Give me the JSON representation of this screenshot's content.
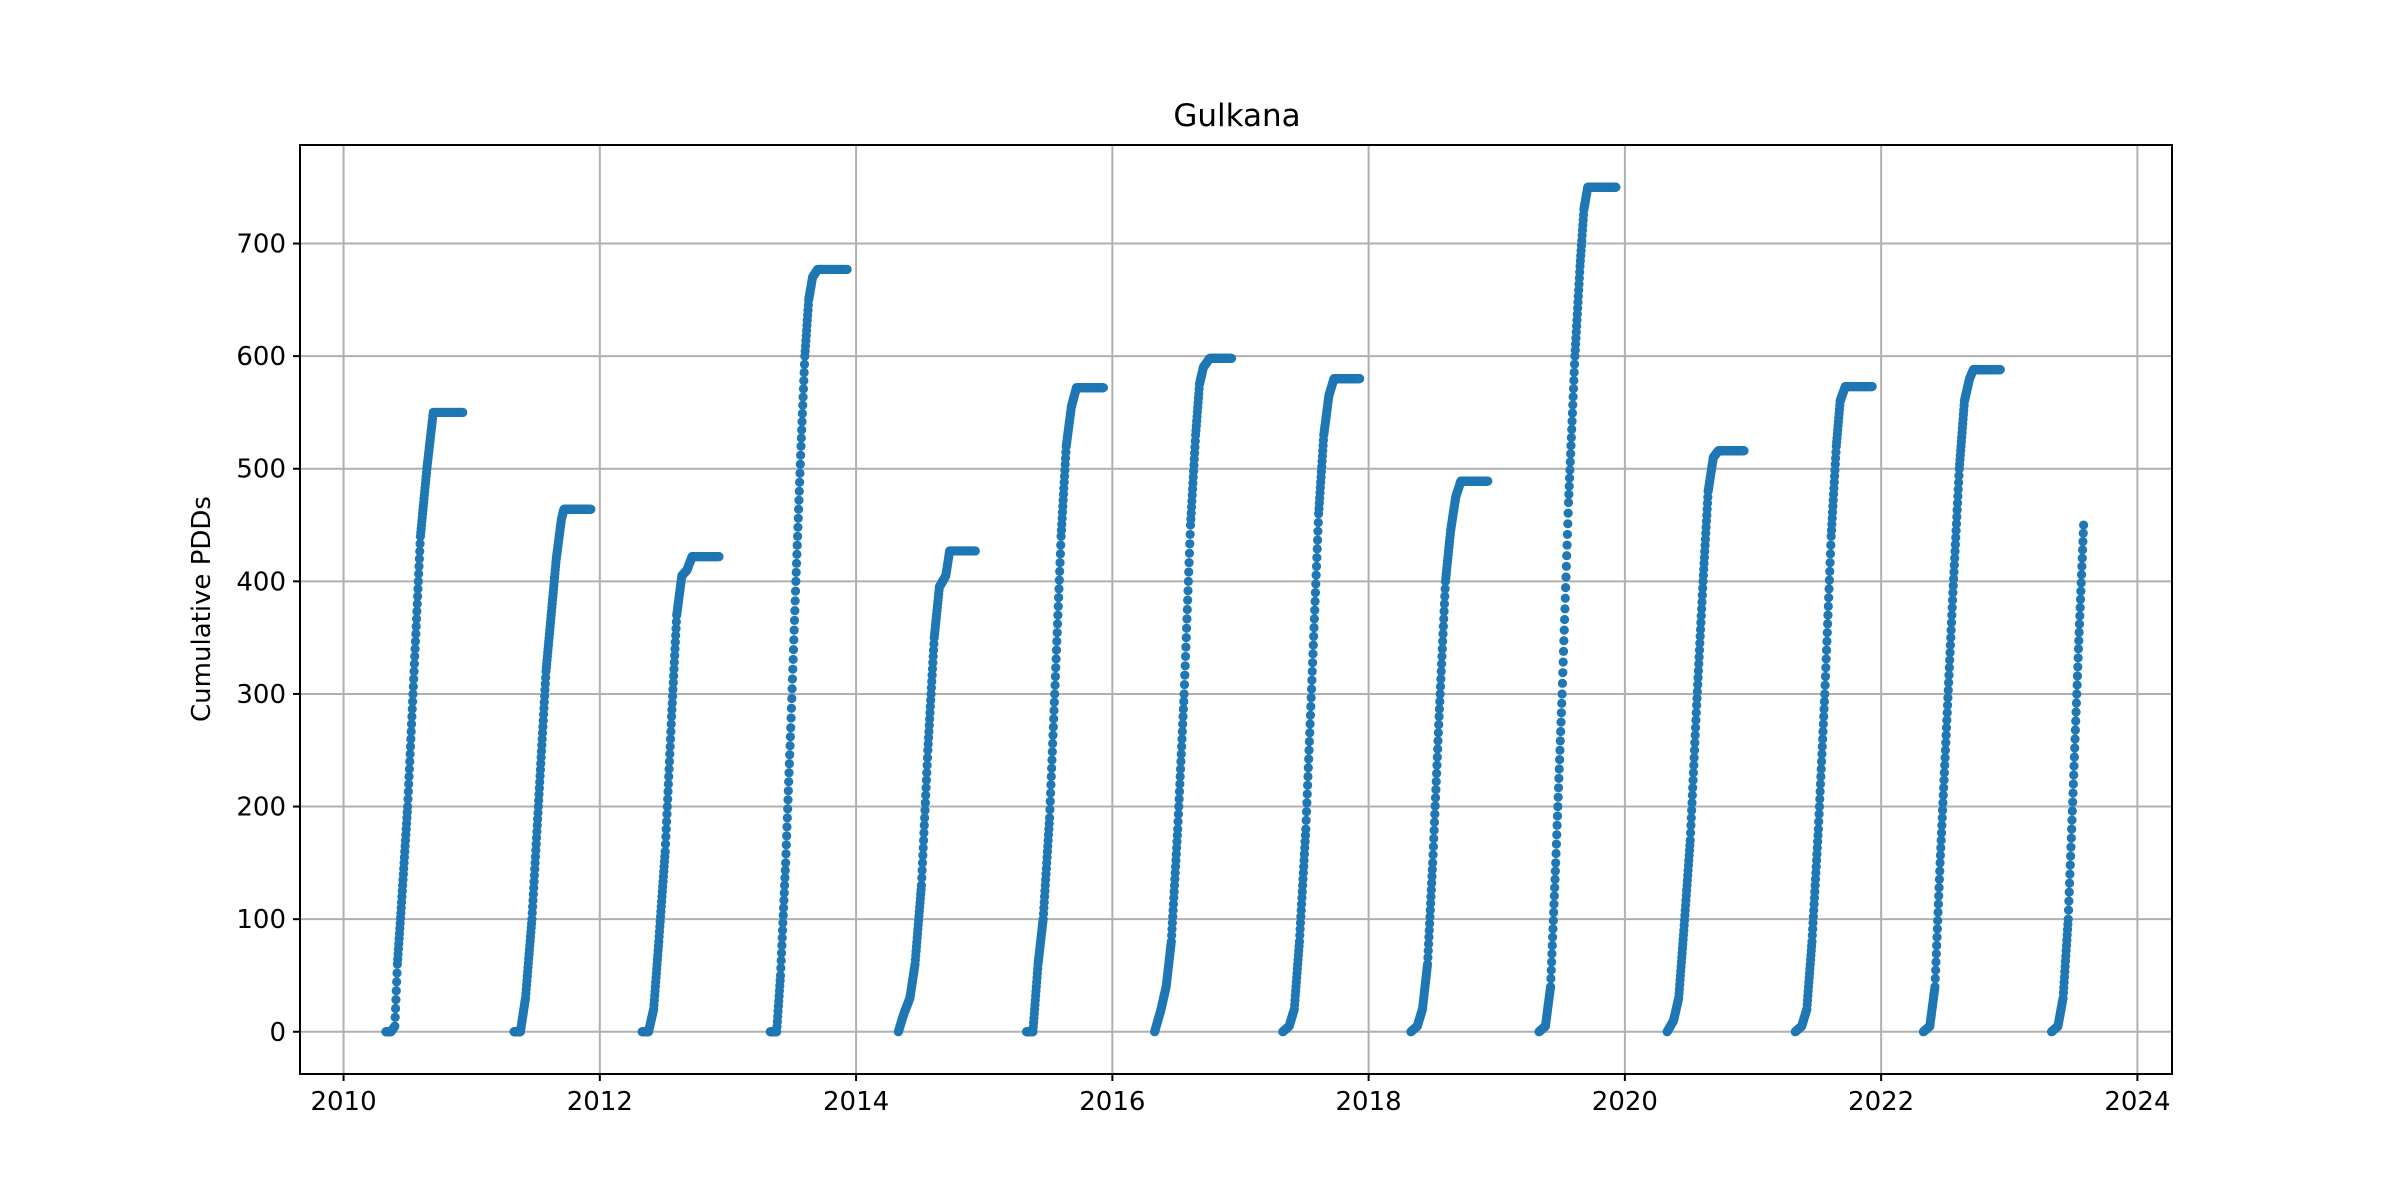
{
  "chart_data": {
    "type": "scatter",
    "title": "Gulkana",
    "xlabel": "",
    "ylabel": "Cumulative PDDs",
    "xlim": [
      2009.66,
      2024.27
    ],
    "ylim": [
      -37.5,
      787.5
    ],
    "xticks": [
      2010,
      2012,
      2014,
      2016,
      2018,
      2020,
      2022,
      2024
    ],
    "xtick_labels": [
      "2010",
      "2012",
      "2014",
      "2016",
      "2018",
      "2020",
      "2022",
      "2024"
    ],
    "yticks": [
      0,
      100,
      200,
      300,
      400,
      500,
      600,
      700
    ],
    "ytick_labels": [
      "0",
      "100",
      "200",
      "300",
      "400",
      "500",
      "600",
      "700"
    ],
    "grid": true,
    "marker_color": "#1f77b4",
    "seasons": [
      {
        "year": 2010,
        "points": [
          [
            2010.33,
            0
          ],
          [
            2010.37,
            0
          ],
          [
            2010.4,
            5
          ],
          [
            2010.42,
            60
          ],
          [
            2010.45,
            110
          ],
          [
            2010.5,
            200
          ],
          [
            2010.55,
            320
          ],
          [
            2010.6,
            440
          ],
          [
            2010.65,
            500
          ],
          [
            2010.68,
            530
          ],
          [
            2010.7,
            550
          ],
          [
            2010.75,
            550
          ],
          [
            2010.85,
            550
          ],
          [
            2010.93,
            550
          ]
        ]
      },
      {
        "year": 2011,
        "points": [
          [
            2011.33,
            0
          ],
          [
            2011.38,
            0
          ],
          [
            2011.42,
            30
          ],
          [
            2011.47,
            100
          ],
          [
            2011.52,
            200
          ],
          [
            2011.58,
            320
          ],
          [
            2011.62,
            370
          ],
          [
            2011.66,
            420
          ],
          [
            2011.7,
            455
          ],
          [
            2011.72,
            464
          ],
          [
            2011.8,
            464
          ],
          [
            2011.93,
            464
          ]
        ]
      },
      {
        "year": 2012,
        "points": [
          [
            2012.33,
            0
          ],
          [
            2012.38,
            0
          ],
          [
            2012.42,
            20
          ],
          [
            2012.46,
            80
          ],
          [
            2012.51,
            160
          ],
          [
            2012.56,
            280
          ],
          [
            2012.6,
            370
          ],
          [
            2012.64,
            405
          ],
          [
            2012.68,
            410
          ],
          [
            2012.72,
            422
          ],
          [
            2012.8,
            422
          ],
          [
            2012.93,
            422
          ]
        ]
      },
      {
        "year": 2013,
        "points": [
          [
            2013.33,
            0
          ],
          [
            2013.38,
            0
          ],
          [
            2013.41,
            50
          ],
          [
            2013.45,
            150
          ],
          [
            2013.49,
            270
          ],
          [
            2013.53,
            400
          ],
          [
            2013.57,
            520
          ],
          [
            2013.6,
            600
          ],
          [
            2013.63,
            650
          ],
          [
            2013.66,
            670
          ],
          [
            2013.7,
            677
          ],
          [
            2013.8,
            677
          ],
          [
            2013.93,
            677
          ]
        ]
      },
      {
        "year": 2014,
        "points": [
          [
            2014.33,
            0
          ],
          [
            2014.37,
            15
          ],
          [
            2014.42,
            30
          ],
          [
            2014.46,
            60
          ],
          [
            2014.51,
            130
          ],
          [
            2014.56,
            250
          ],
          [
            2014.61,
            350
          ],
          [
            2014.65,
            395
          ],
          [
            2014.7,
            405
          ],
          [
            2014.73,
            427
          ],
          [
            2014.8,
            427
          ],
          [
            2014.93,
            427
          ]
        ]
      },
      {
        "year": 2015,
        "points": [
          [
            2015.33,
            0
          ],
          [
            2015.38,
            0
          ],
          [
            2015.42,
            60
          ],
          [
            2015.46,
            100
          ],
          [
            2015.51,
            190
          ],
          [
            2015.55,
            300
          ],
          [
            2015.6,
            440
          ],
          [
            2015.64,
            520
          ],
          [
            2015.68,
            555
          ],
          [
            2015.72,
            572
          ],
          [
            2015.8,
            572
          ],
          [
            2015.93,
            572
          ]
        ]
      },
      {
        "year": 2016,
        "points": [
          [
            2016.33,
            0
          ],
          [
            2016.38,
            20
          ],
          [
            2016.42,
            40
          ],
          [
            2016.46,
            80
          ],
          [
            2016.51,
            180
          ],
          [
            2016.56,
            300
          ],
          [
            2016.61,
            450
          ],
          [
            2016.65,
            530
          ],
          [
            2016.68,
            575
          ],
          [
            2016.71,
            590
          ],
          [
            2016.76,
            598
          ],
          [
            2016.85,
            598
          ],
          [
            2016.93,
            598
          ]
        ]
      },
      {
        "year": 2017,
        "points": [
          [
            2017.33,
            0
          ],
          [
            2017.38,
            5
          ],
          [
            2017.42,
            20
          ],
          [
            2017.46,
            80
          ],
          [
            2017.51,
            180
          ],
          [
            2017.56,
            320
          ],
          [
            2017.61,
            460
          ],
          [
            2017.65,
            530
          ],
          [
            2017.69,
            565
          ],
          [
            2017.73,
            580
          ],
          [
            2017.8,
            580
          ],
          [
            2017.93,
            580
          ]
        ]
      },
      {
        "year": 2018,
        "points": [
          [
            2018.33,
            0
          ],
          [
            2018.38,
            5
          ],
          [
            2018.42,
            20
          ],
          [
            2018.46,
            60
          ],
          [
            2018.5,
            150
          ],
          [
            2018.55,
            280
          ],
          [
            2018.6,
            400
          ],
          [
            2018.64,
            445
          ],
          [
            2018.68,
            475
          ],
          [
            2018.72,
            489
          ],
          [
            2018.8,
            489
          ],
          [
            2018.93,
            489
          ]
        ]
      },
      {
        "year": 2019,
        "points": [
          [
            2019.33,
            0
          ],
          [
            2019.38,
            5
          ],
          [
            2019.42,
            40
          ],
          [
            2019.46,
            150
          ],
          [
            2019.51,
            300
          ],
          [
            2019.56,
            470
          ],
          [
            2019.61,
            600
          ],
          [
            2019.65,
            680
          ],
          [
            2019.68,
            730
          ],
          [
            2019.71,
            750
          ],
          [
            2019.8,
            750
          ],
          [
            2019.93,
            750
          ]
        ]
      },
      {
        "year": 2020,
        "points": [
          [
            2020.33,
            0
          ],
          [
            2020.38,
            10
          ],
          [
            2020.42,
            30
          ],
          [
            2020.46,
            90
          ],
          [
            2020.51,
            170
          ],
          [
            2020.56,
            290
          ],
          [
            2020.61,
            400
          ],
          [
            2020.65,
            480
          ],
          [
            2020.69,
            510
          ],
          [
            2020.73,
            516
          ],
          [
            2020.8,
            516
          ],
          [
            2020.93,
            516
          ]
        ]
      },
      {
        "year": 2021,
        "points": [
          [
            2021.33,
            0
          ],
          [
            2021.38,
            5
          ],
          [
            2021.42,
            20
          ],
          [
            2021.46,
            80
          ],
          [
            2021.51,
            180
          ],
          [
            2021.56,
            300
          ],
          [
            2021.61,
            440
          ],
          [
            2021.65,
            520
          ],
          [
            2021.68,
            560
          ],
          [
            2021.72,
            573
          ],
          [
            2021.8,
            573
          ],
          [
            2021.93,
            573
          ]
        ]
      },
      {
        "year": 2022,
        "points": [
          [
            2022.33,
            0
          ],
          [
            2022.38,
            5
          ],
          [
            2022.42,
            40
          ],
          [
            2022.46,
            150
          ],
          [
            2022.51,
            270
          ],
          [
            2022.56,
            390
          ],
          [
            2022.61,
            500
          ],
          [
            2022.65,
            560
          ],
          [
            2022.69,
            580
          ],
          [
            2022.72,
            588
          ],
          [
            2022.8,
            588
          ],
          [
            2022.93,
            588
          ]
        ]
      },
      {
        "year": 2023,
        "points": [
          [
            2023.33,
            0
          ],
          [
            2023.38,
            5
          ],
          [
            2023.42,
            30
          ],
          [
            2023.46,
            100
          ],
          [
            2023.5,
            220
          ],
          [
            2023.54,
            340
          ],
          [
            2023.58,
            450
          ]
        ]
      }
    ]
  }
}
